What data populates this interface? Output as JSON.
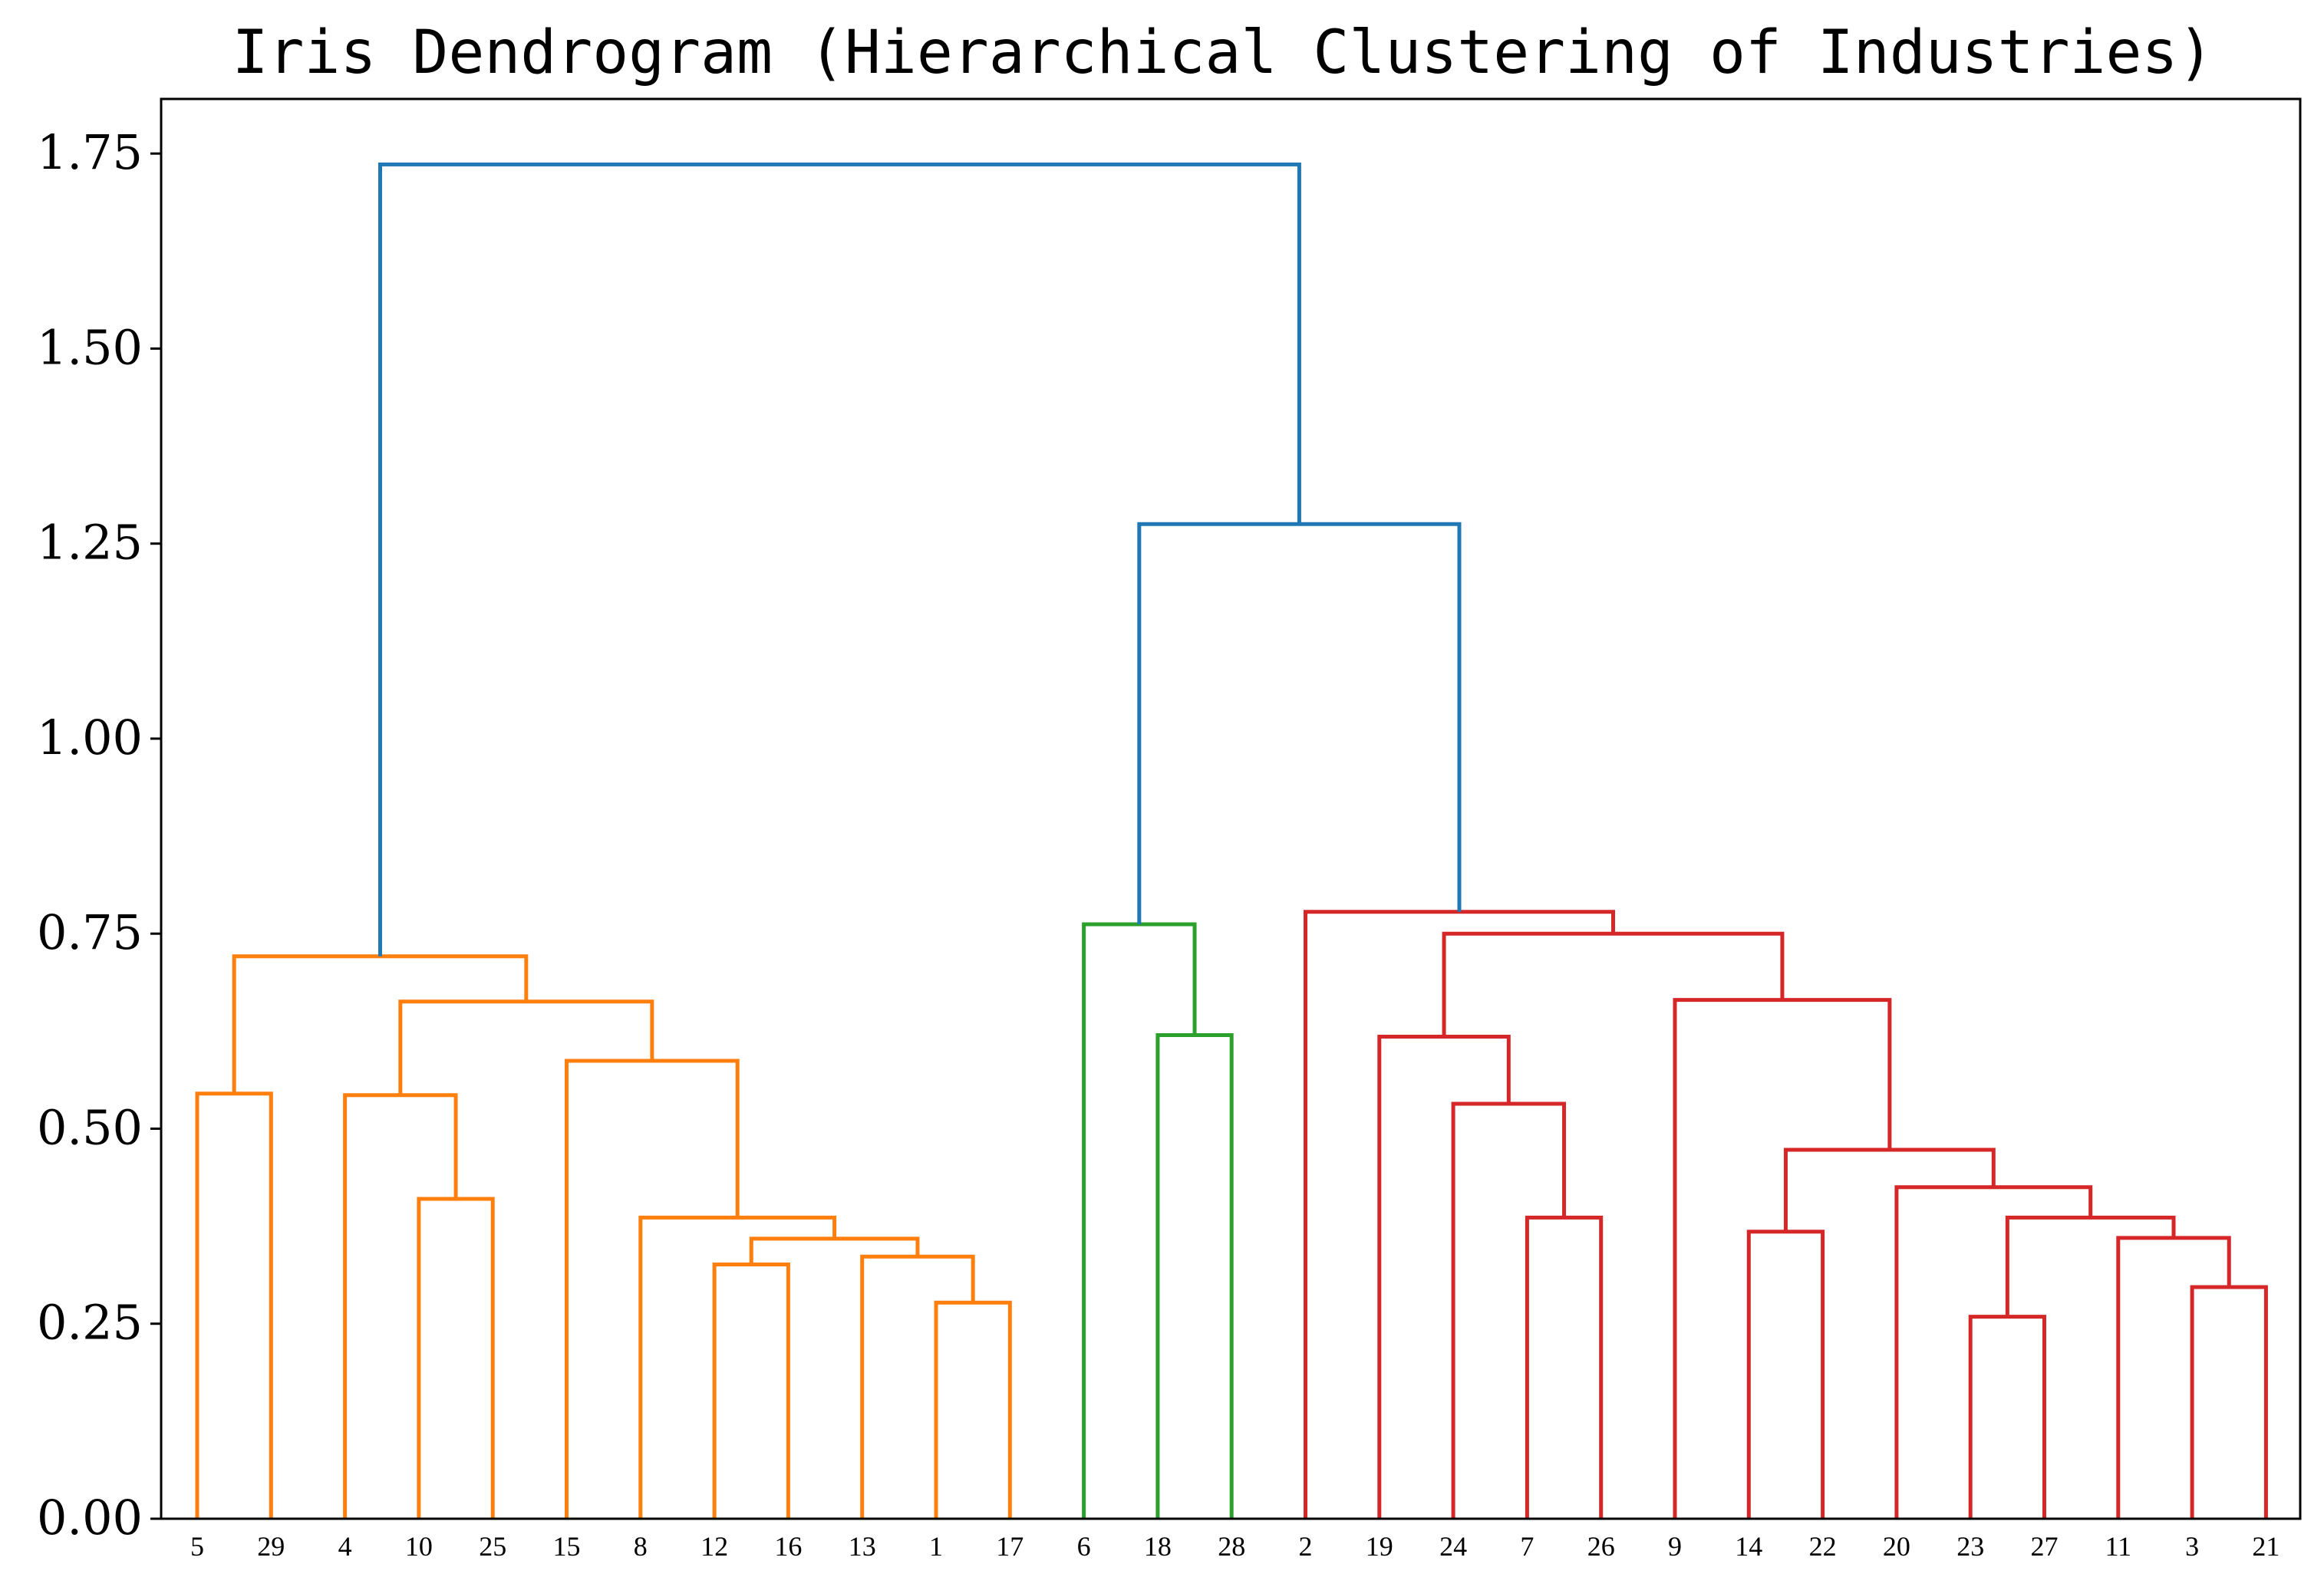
{
  "chart_data": {
    "type": "dendrogram",
    "title": "Iris Dendrogram (Hierarchical Clustering of Industries)",
    "xlabel": "",
    "ylabel": "",
    "ylim": [
      0,
      1.82
    ],
    "grid": false,
    "yticks": [
      "0.00",
      "0.25",
      "0.50",
      "0.75",
      "1.00",
      "1.25",
      "1.50",
      "1.75"
    ],
    "ytick_values": [
      0,
      0.25,
      0.5,
      0.75,
      1.0,
      1.25,
      1.5,
      1.75
    ],
    "leaves": [
      "5",
      "29",
      "4",
      "10",
      "25",
      "15",
      "8",
      "12",
      "16",
      "13",
      "1",
      "17",
      "6",
      "18",
      "28",
      "2",
      "19",
      "24",
      "7",
      "26",
      "9",
      "14",
      "22",
      "20",
      "23",
      "27",
      "11",
      "3",
      "21"
    ],
    "colors": {
      "root": "#1f77b4",
      "orange": "#ff7f0e",
      "green": "#2ca02c",
      "red": "#d62728"
    },
    "merges": [
      {
        "id": "A",
        "left": "5",
        "right": "29",
        "height": 0.545,
        "color": "orange"
      },
      {
        "id": "B",
        "left": "10",
        "right": "25",
        "height": 0.41,
        "color": "orange"
      },
      {
        "id": "C",
        "left": "4",
        "right": "B",
        "height": 0.543,
        "color": "orange"
      },
      {
        "id": "D",
        "left": "12",
        "right": "16",
        "height": 0.326,
        "color": "orange"
      },
      {
        "id": "E",
        "left": "1",
        "right": "17",
        "height": 0.277,
        "color": "orange"
      },
      {
        "id": "F",
        "left": "13",
        "right": "E",
        "height": 0.336,
        "color": "orange"
      },
      {
        "id": "G",
        "left": "D",
        "right": "F",
        "height": 0.359,
        "color": "orange"
      },
      {
        "id": "H",
        "left": "8",
        "right": "G",
        "height": 0.386,
        "color": "orange"
      },
      {
        "id": "I",
        "left": "15",
        "right": "H",
        "height": 0.587,
        "color": "orange"
      },
      {
        "id": "J",
        "left": "C",
        "right": "I",
        "height": 0.663,
        "color": "orange"
      },
      {
        "id": "K",
        "left": "A",
        "right": "J",
        "height": 0.721,
        "color": "orange"
      },
      {
        "id": "L",
        "left": "18",
        "right": "28",
        "height": 0.62,
        "color": "green"
      },
      {
        "id": "M",
        "left": "6",
        "right": "L",
        "height": 0.762,
        "color": "green"
      },
      {
        "id": "N",
        "left": "7",
        "right": "26",
        "height": 0.386,
        "color": "red"
      },
      {
        "id": "O",
        "left": "24",
        "right": "N",
        "height": 0.532,
        "color": "red"
      },
      {
        "id": "P",
        "left": "19",
        "right": "O",
        "height": 0.618,
        "color": "red"
      },
      {
        "id": "Q",
        "left": "14",
        "right": "22",
        "height": 0.368,
        "color": "red"
      },
      {
        "id": "R",
        "left": "23",
        "right": "27",
        "height": 0.259,
        "color": "red"
      },
      {
        "id": "S",
        "left": "3",
        "right": "21",
        "height": 0.297,
        "color": "red"
      },
      {
        "id": "T",
        "left": "11",
        "right": "S",
        "height": 0.36,
        "color": "red"
      },
      {
        "id": "U",
        "left": "R",
        "right": "T",
        "height": 0.386,
        "color": "red"
      },
      {
        "id": "V",
        "left": "20",
        "right": "U",
        "height": 0.425,
        "color": "red"
      },
      {
        "id": "W",
        "left": "Q",
        "right": "V",
        "height": 0.473,
        "color": "red"
      },
      {
        "id": "X",
        "left": "9",
        "right": "W",
        "height": 0.665,
        "color": "red"
      },
      {
        "id": "Y",
        "left": "P",
        "right": "X",
        "height": 0.75,
        "color": "red"
      },
      {
        "id": "Z",
        "left": "2",
        "right": "Y",
        "height": 0.778,
        "color": "red"
      },
      {
        "id": "AA",
        "left": "M",
        "right": "Z",
        "height": 1.275,
        "color": "root"
      },
      {
        "id": "AB",
        "left": "K",
        "right": "AA",
        "height": 1.736,
        "color": "root"
      }
    ]
  }
}
